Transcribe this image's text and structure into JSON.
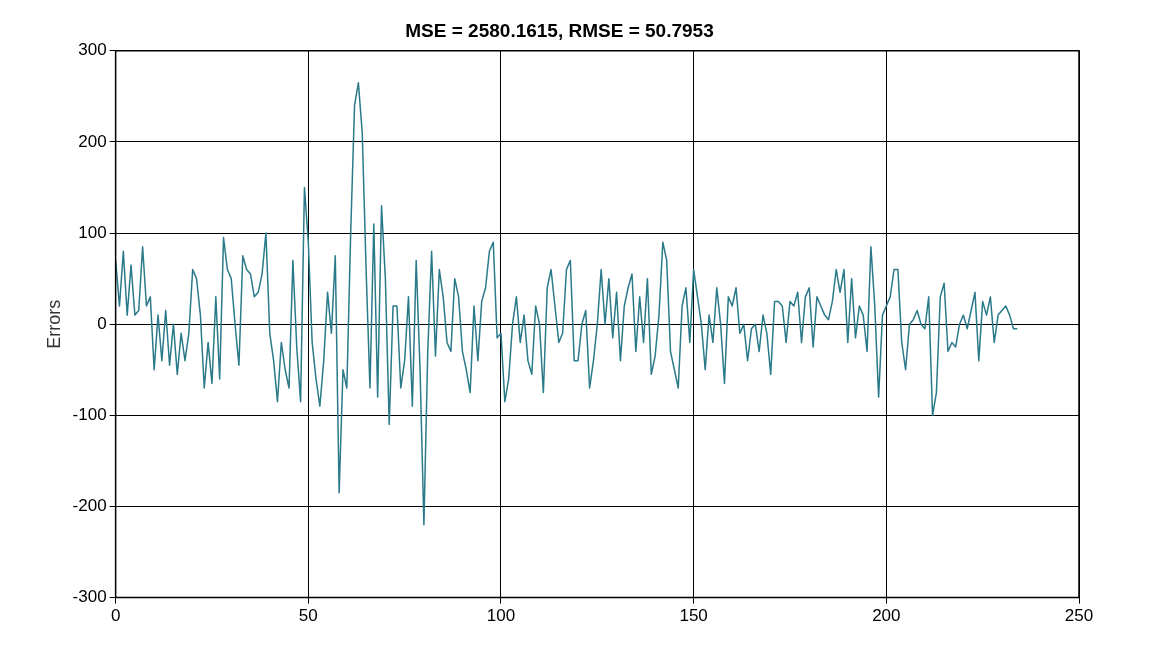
{
  "chart_data": {
    "type": "line",
    "title": "MSE = 2580.1615, RMSE = 50.7953",
    "ylabel": "Errors",
    "x": [
      0,
      1,
      2,
      3,
      4,
      5,
      6,
      7,
      8,
      9,
      10,
      11,
      12,
      13,
      14,
      15,
      16,
      17,
      18,
      19,
      20,
      21,
      22,
      23,
      24,
      25,
      26,
      27,
      28,
      29,
      30,
      31,
      32,
      33,
      34,
      35,
      36,
      37,
      38,
      39,
      40,
      41,
      42,
      43,
      44,
      45,
      46,
      47,
      48,
      49,
      50,
      51,
      52,
      53,
      54,
      55,
      56,
      57,
      58,
      59,
      60,
      61,
      62,
      63,
      64,
      65,
      66,
      67,
      68,
      69,
      70,
      71,
      72,
      73,
      74,
      75,
      76,
      77,
      78,
      79,
      80,
      81,
      82,
      83,
      84,
      85,
      86,
      87,
      88,
      89,
      90,
      91,
      92,
      93,
      94,
      95,
      96,
      97,
      98,
      99,
      100,
      101,
      102,
      103,
      104,
      105,
      106,
      107,
      108,
      109,
      110,
      111,
      112,
      113,
      114,
      115,
      116,
      117,
      118,
      119,
      120,
      121,
      122,
      123,
      124,
      125,
      126,
      127,
      128,
      129,
      130,
      131,
      132,
      133,
      134,
      135,
      136,
      137,
      138,
      139,
      140,
      141,
      142,
      143,
      144,
      145,
      146,
      147,
      148,
      149,
      150,
      151,
      152,
      153,
      154,
      155,
      156,
      157,
      158,
      159,
      160,
      161,
      162,
      163,
      164,
      165,
      166,
      167,
      168,
      169,
      170,
      171,
      172,
      173,
      174,
      175,
      176,
      177,
      178,
      179,
      180,
      181,
      182,
      183,
      184,
      185,
      186,
      187,
      188,
      189,
      190,
      191,
      192,
      193,
      194,
      195,
      196,
      197,
      198,
      199,
      200,
      201,
      202,
      203,
      204,
      205,
      206,
      207,
      208,
      209,
      210,
      211,
      212,
      213,
      214,
      215,
      216,
      217,
      218,
      219,
      220,
      221,
      222,
      223,
      224,
      225,
      226,
      227,
      228,
      229,
      230,
      231,
      232,
      233,
      234
    ],
    "series": [
      {
        "color": "#2a7a8a",
        "values": [
          70,
          20,
          80,
          10,
          65,
          10,
          15,
          85,
          20,
          30,
          -50,
          10,
          -40,
          15,
          -45,
          0,
          -55,
          -10,
          -40,
          -10,
          60,
          50,
          10,
          -70,
          -20,
          -65,
          30,
          -60,
          95,
          60,
          50,
          0,
          -45,
          75,
          60,
          55,
          30,
          35,
          55,
          100,
          -10,
          -40,
          -85,
          -20,
          -50,
          -70,
          70,
          -25,
          -85,
          150,
          90,
          -20,
          -60,
          -90,
          -40,
          35,
          -10,
          75,
          -185,
          -50,
          -70,
          100,
          240,
          265,
          210,
          60,
          -70,
          110,
          -80,
          130,
          50,
          -110,
          20,
          20,
          -70,
          -40,
          30,
          -90,
          70,
          -50,
          -220,
          -30,
          80,
          -35,
          60,
          30,
          -20,
          -30,
          50,
          30,
          -30,
          -50,
          -75,
          20,
          -40,
          25,
          40,
          80,
          90,
          -15,
          -10,
          -85,
          -60,
          0,
          30,
          -20,
          10,
          -40,
          -55,
          20,
          0,
          -75,
          40,
          60,
          20,
          -20,
          -10,
          60,
          70,
          -40,
          -40,
          0,
          15,
          -70,
          -40,
          0,
          60,
          0,
          50,
          -15,
          35,
          -40,
          20,
          40,
          55,
          -30,
          30,
          -20,
          50,
          -55,
          -35,
          10,
          90,
          70,
          -30,
          -50,
          -70,
          20,
          40,
          -20,
          60,
          30,
          0,
          -50,
          10,
          -20,
          40,
          0,
          -65,
          30,
          20,
          40,
          -10,
          0,
          -40,
          -5,
          0,
          -30,
          10,
          -10,
          -55,
          25,
          25,
          20,
          -20,
          25,
          20,
          35,
          -20,
          30,
          40,
          -25,
          30,
          20,
          10,
          5,
          25,
          60,
          35,
          60,
          -20,
          50,
          -15,
          20,
          10,
          -30,
          85,
          20,
          -80,
          10,
          20,
          30,
          60,
          60,
          -20,
          -50,
          0,
          5,
          15,
          0,
          -5,
          30,
          -100,
          -75,
          30,
          45,
          -30,
          -20,
          -25,
          0,
          10,
          -5,
          15,
          35,
          -40,
          25,
          10,
          30,
          -20,
          10,
          15,
          20,
          10,
          -5,
          -5
        ]
      }
    ],
    "xlim": [
      0,
      250
    ],
    "xticks": [
      0,
      50,
      100,
      150,
      200,
      250
    ],
    "ylim": [
      -300,
      300
    ],
    "yticks": [
      -300,
      -200,
      -100,
      0,
      100,
      200,
      300
    ],
    "grid": true,
    "legend": false,
    "marker": "none",
    "line_style": "solid"
  }
}
